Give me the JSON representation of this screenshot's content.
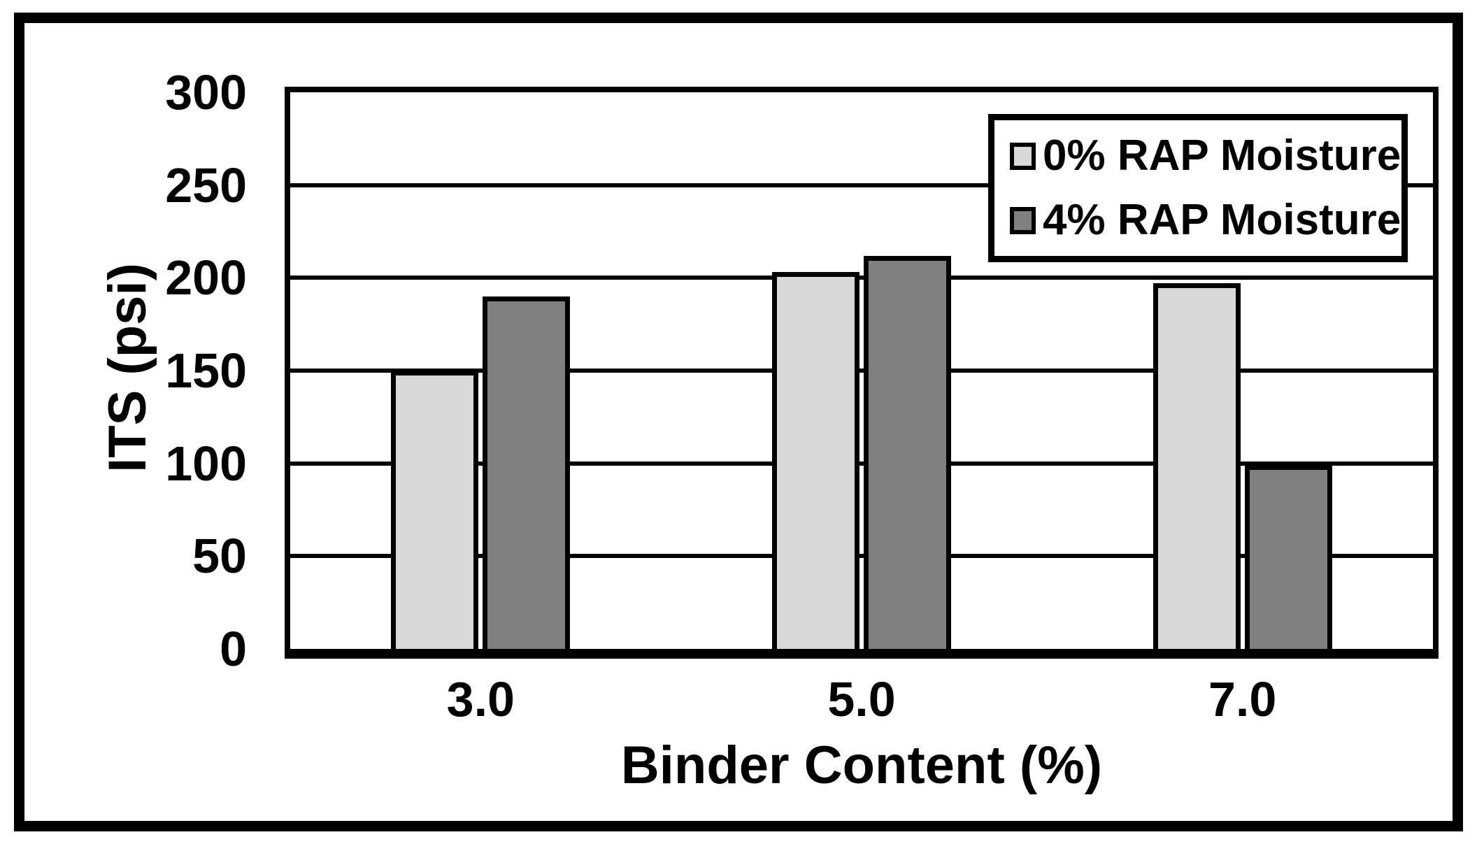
{
  "chart_data": {
    "type": "bar",
    "categories": [
      "3.0",
      "5.0",
      "7.0"
    ],
    "series": [
      {
        "name": "0% RAP Moisture",
        "color": "#d9d9d9",
        "values": [
          150,
          203,
          197
        ]
      },
      {
        "name": "4% RAP Moisture",
        "color": "#808080",
        "values": [
          190,
          212,
          99
        ]
      }
    ],
    "xlabel": "Binder Content (%)",
    "ylabel": "ITS (psi)",
    "ylim": [
      0,
      300
    ],
    "yticks": [
      0,
      50,
      100,
      150,
      200,
      250,
      300
    ],
    "grid": "horizontal",
    "legend_position": "top-right",
    "colors": {
      "axis": "#000000",
      "gridline": "#000000",
      "bar_border": "#000000",
      "background": "#ffffff",
      "frame": "#000000"
    }
  }
}
